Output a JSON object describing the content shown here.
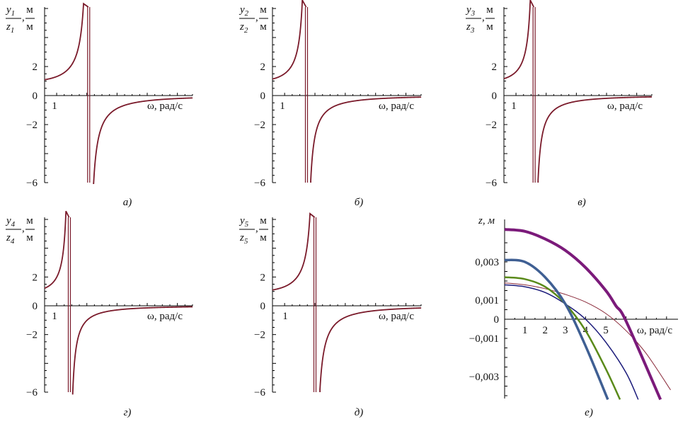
{
  "colors": {
    "curve": "#7a1a2a",
    "purple": "#7b1a7a",
    "steel": "#3f5f93",
    "olive": "#5a8a1a",
    "navy": "#1a1a7a",
    "thin_red": "#8a2a3a"
  },
  "chart_data": [
    {
      "type": "line",
      "panel_label": "а)",
      "ylabel_num": "y",
      "ylabel_num_sub": "1",
      "ylabel_den": "z",
      "ylabel_den_sub": "1",
      "ylabel_unit_num": "м",
      "ylabel_unit_den": "м",
      "xlabel": "ω, рад/с",
      "x_tick_labels": [
        "1"
      ],
      "y_tick_labels": [
        "2",
        "0",
        "−2",
        "−6"
      ],
      "y_ticks": [
        2,
        0,
        -2,
        -6
      ],
      "xlim": [
        0.6,
        5.5
      ],
      "ylim": [
        -6,
        6
      ],
      "resonance": 2.06,
      "series": [
        {
          "formula": "1/(1-(w/wr)^2)"
        }
      ]
    },
    {
      "type": "line",
      "panel_label": "б)",
      "ylabel_num": "y",
      "ylabel_num_sub": "2",
      "ylabel_den": "z",
      "ylabel_den_sub": "2",
      "ylabel_unit_num": "м",
      "ylabel_unit_den": "м",
      "xlabel": "ω, рад/с",
      "x_tick_labels": [
        "1"
      ],
      "y_tick_labels": [
        "2",
        "0",
        "−2",
        "−6"
      ],
      "y_ticks": [
        2,
        0,
        -2,
        -6
      ],
      "xlim": [
        0.6,
        5.5
      ],
      "ylim": [
        -6,
        6
      ],
      "resonance": 1.72,
      "series": [
        {
          "formula": "1/(1-(w/wr)^2)"
        }
      ]
    },
    {
      "type": "line",
      "panel_label": "в)",
      "ylabel_num": "y",
      "ylabel_num_sub": "3",
      "ylabel_den": "z",
      "ylabel_den_sub": "3",
      "ylabel_unit_num": "м",
      "ylabel_unit_den": "м",
      "xlabel": "ω, рад/с",
      "x_tick_labels": [
        "1"
      ],
      "y_tick_labels": [
        "2",
        "0",
        "−2",
        "−6"
      ],
      "y_ticks": [
        2,
        0,
        -2,
        -6
      ],
      "xlim": [
        0.6,
        5.5
      ],
      "ylim": [
        -6,
        6
      ],
      "resonance": 1.6,
      "series": [
        {
          "formula": "1/(1-(w/wr)^2)"
        }
      ]
    },
    {
      "type": "line",
      "panel_label": "г)",
      "ylabel_num": "y",
      "ylabel_num_sub": "4",
      "ylabel_den": "z",
      "ylabel_den_sub": "4",
      "ylabel_unit_num": "м",
      "ylabel_unit_den": "м",
      "xlabel": "ω, рад/с",
      "x_tick_labels": [
        "1"
      ],
      "y_tick_labels": [
        "2",
        "0",
        "−2",
        "−6"
      ],
      "y_ticks": [
        2,
        0,
        -2,
        -6
      ],
      "xlim": [
        0.6,
        5.5
      ],
      "ylim": [
        -6,
        6
      ],
      "resonance": 1.42,
      "series": [
        {
          "formula": "1/(1-(w/wr)^2)"
        }
      ]
    },
    {
      "type": "line",
      "panel_label": "д)",
      "ylabel_num": "y",
      "ylabel_num_sub": "5",
      "ylabel_den": "z",
      "ylabel_den_sub": "5",
      "ylabel_unit_num": "м",
      "ylabel_unit_den": "м",
      "xlabel": "ω, рад/с",
      "x_tick_labels": [
        "1"
      ],
      "y_tick_labels": [
        "2",
        "0",
        "−2",
        "−6"
      ],
      "y_ticks": [
        2,
        0,
        -2,
        -6
      ],
      "xlim": [
        0.6,
        5.5
      ],
      "ylim": [
        -6,
        6
      ],
      "resonance": 2.0,
      "series": [
        {
          "formula": "1/(1-(w/wr)^2)"
        }
      ]
    },
    {
      "type": "line",
      "panel_label": "е)",
      "ylabel": "z, м",
      "xlabel": "ω, рад/с",
      "x_ticks": [
        1,
        2,
        3,
        4,
        5
      ],
      "x_tick_labels": [
        "1",
        "2",
        "3",
        "4",
        "5"
      ],
      "y_ticks": [
        0.003,
        0.001,
        0,
        -0.001,
        -0.003
      ],
      "y_tick_labels": [
        "0,003",
        "0,001",
        "0",
        "−0,001",
        "−0,003"
      ],
      "xlim": [
        0,
        8.5
      ],
      "ylim": [
        -0.004,
        0.0048
      ],
      "series": [
        {
          "color_key": "purple",
          "width": 4,
          "x": [
            0,
            1,
            2,
            3,
            4,
            5,
            5.5,
            6,
            7.7
          ],
          "y": [
            0.0047,
            0.0046,
            0.0042,
            0.0036,
            0.0027,
            0.0015,
            0.0007,
            -0.0001,
            -0.0042
          ]
        },
        {
          "color_key": "steel",
          "width": 3.5,
          "x": [
            0,
            1,
            2,
            3,
            4,
            5.1
          ],
          "y": [
            0.0031,
            0.003,
            0.0022,
            0.0008,
            -0.0014,
            -0.0042
          ]
        },
        {
          "color_key": "olive",
          "width": 2.5,
          "x": [
            0,
            1,
            2,
            3,
            4,
            5,
            5.7
          ],
          "y": [
            0.0022,
            0.0021,
            0.0017,
            0.0008,
            -0.0006,
            -0.0026,
            -0.0042
          ]
        },
        {
          "color_key": "navy",
          "width": 1.5,
          "x": [
            0,
            1,
            2,
            3,
            4,
            5,
            6,
            6.6
          ],
          "y": [
            0.0018,
            0.0017,
            0.0014,
            0.0008,
            0.0,
            -0.0012,
            -0.0028,
            -0.0042
          ]
        },
        {
          "color_key": "thin_red",
          "width": 1,
          "x": [
            0,
            1,
            2,
            3,
            4,
            5,
            6,
            7,
            8.2
          ],
          "y": [
            0.0019,
            0.0018,
            0.0016,
            0.0013,
            0.0009,
            0.0003,
            -0.0006,
            -0.0018,
            -0.0037
          ]
        }
      ]
    }
  ]
}
